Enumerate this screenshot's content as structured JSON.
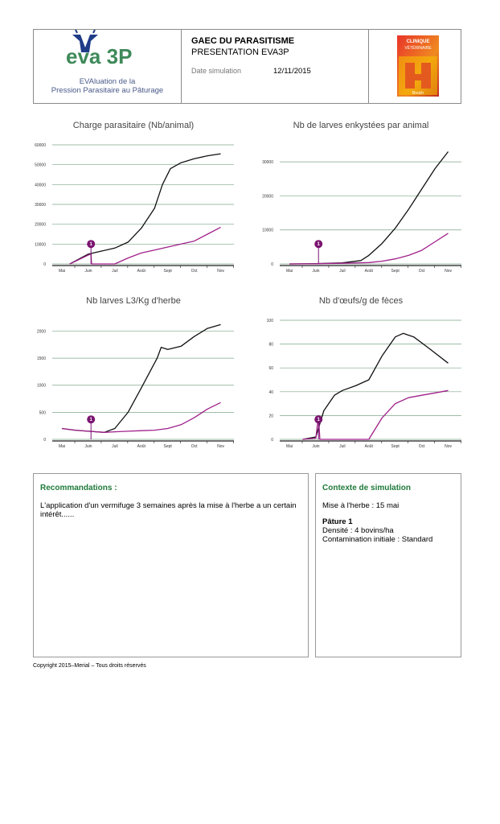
{
  "header": {
    "logo_text": "eva 3P",
    "logo_line1": "EVAluation de la",
    "logo_line2": "Pression Parasitaire au Pâturage",
    "farm": "GAEC DU PARASITISME",
    "presentation": "PRESENTATION EVA3P",
    "date_label": "Date simulation",
    "date_value": "12/11/2015",
    "clinic_logo_text": "CLINIQUE VÉTÉRINAIRE Breizh"
  },
  "colors": {
    "series_total": "#111111",
    "series_treated": "#a0208a",
    "grid": "#7fa58a",
    "marker": "#7a1470",
    "box_title": "#1f7a3a"
  },
  "chart_data": [
    {
      "type": "line",
      "title": "Charge parasitaire (Nb/animal)",
      "categories": [
        "Mai",
        "Juin",
        "Juil",
        "Août",
        "Sept",
        "Oct",
        "Nov"
      ],
      "yticks": [
        "0",
        "10000",
        "20000",
        "30000",
        "40000",
        "50000",
        "60000"
      ],
      "ylim": [
        0,
        60000
      ],
      "marker": {
        "label": "1",
        "month": 1.1
      },
      "series": [
        {
          "points": [
            [
              0.3,
              0
            ],
            [
              1,
              5000
            ],
            [
              1.5,
              6500
            ],
            [
              2,
              8000
            ],
            [
              2.5,
              11000
            ],
            [
              3,
              18000
            ],
            [
              3.5,
              28000
            ],
            [
              3.8,
              40000
            ],
            [
              4.1,
              48000
            ],
            [
              4.5,
              51000
            ],
            [
              5,
              53000
            ],
            [
              5.5,
              54500
            ],
            [
              6,
              55500
            ]
          ]
        },
        {
          "points": [
            [
              0.3,
              0
            ],
            [
              1,
              4500
            ],
            [
              1.1,
              5000
            ],
            [
              1.12,
              0
            ],
            [
              2,
              0
            ],
            [
              2.5,
              3000
            ],
            [
              3,
              5500
            ],
            [
              3.5,
              7000
            ],
            [
              4,
              8500
            ],
            [
              4.5,
              10000
            ],
            [
              5,
              11500
            ],
            [
              5.5,
              15000
            ],
            [
              6,
              18500
            ]
          ]
        }
      ]
    },
    {
      "type": "line",
      "title": "Nb de larves enkystées par animal",
      "categories": [
        "Mai",
        "Juin",
        "Juil",
        "Août",
        "Sept",
        "Oct",
        "Nov"
      ],
      "yticks": [
        "0",
        "10000",
        "20000",
        "30000"
      ],
      "ylim": [
        0,
        35000
      ],
      "marker": {
        "label": "1",
        "month": 1.1
      },
      "series": [
        {
          "points": [
            [
              0,
              0
            ],
            [
              1,
              100
            ],
            [
              2,
              300
            ],
            [
              2.7,
              1000
            ],
            [
              3,
              2500
            ],
            [
              3.5,
              6000
            ],
            [
              4,
              10500
            ],
            [
              4.5,
              16000
            ],
            [
              5,
              22000
            ],
            [
              5.5,
              28000
            ],
            [
              6,
              33000
            ]
          ]
        },
        {
          "points": [
            [
              0,
              0
            ],
            [
              1,
              50
            ],
            [
              1.1,
              80
            ],
            [
              2,
              200
            ],
            [
              3,
              400
            ],
            [
              3.5,
              800
            ],
            [
              4,
              1500
            ],
            [
              4.5,
              2500
            ],
            [
              5,
              4000
            ],
            [
              5.5,
              6500
            ],
            [
              6,
              9000
            ]
          ]
        }
      ]
    },
    {
      "type": "line",
      "title": "Nb larves L3/Kg d'herbe",
      "categories": [
        "Mai",
        "Juin",
        "Juil",
        "Août",
        "Sept",
        "Oct",
        "Nov"
      ],
      "yticks": [
        "0",
        "500",
        "1000",
        "1500",
        "2000"
      ],
      "ylim": [
        0,
        2200
      ],
      "marker": {
        "label": "1",
        "month": 1.1
      },
      "series": [
        {
          "points": [
            [
              0,
              200
            ],
            [
              0.5,
              170
            ],
            [
              1,
              150
            ],
            [
              1.6,
              130
            ],
            [
              2,
              200
            ],
            [
              2.5,
              500
            ],
            [
              3,
              950
            ],
            [
              3.6,
              1500
            ],
            [
              3.75,
              1700
            ],
            [
              4,
              1660
            ],
            [
              4.5,
              1720
            ],
            [
              5,
              1900
            ],
            [
              5.5,
              2050
            ],
            [
              6,
              2120
            ]
          ]
        },
        {
          "points": [
            [
              0,
              200
            ],
            [
              0.5,
              170
            ],
            [
              1,
              150
            ],
            [
              1.6,
              130
            ],
            [
              2,
              140
            ],
            [
              2.5,
              150
            ],
            [
              3,
              160
            ],
            [
              3.5,
              170
            ],
            [
              4,
              200
            ],
            [
              4.5,
              270
            ],
            [
              5,
              400
            ],
            [
              5.5,
              560
            ],
            [
              6,
              680
            ]
          ]
        }
      ]
    },
    {
      "type": "line",
      "title": "Nb d'œufs/g de fèces",
      "categories": [
        "Mai",
        "Juin",
        "Juil",
        "Août",
        "Sept",
        "Oct",
        "Nov"
      ],
      "yticks": [
        "0",
        "20",
        "40",
        "60",
        "80",
        "100"
      ],
      "ylim": [
        0,
        100
      ],
      "marker": {
        "label": "1",
        "month": 1.1
      },
      "series": [
        {
          "points": [
            [
              0.5,
              0
            ],
            [
              1,
              2
            ],
            [
              1.3,
              24
            ],
            [
              1.7,
              37
            ],
            [
              2,
              41
            ],
            [
              2.5,
              45
            ],
            [
              3,
              50
            ],
            [
              3.5,
              70
            ],
            [
              4,
              86
            ],
            [
              4.3,
              89
            ],
            [
              4.7,
              86
            ],
            [
              5.3,
              76
            ],
            [
              6,
              64
            ]
          ]
        },
        {
          "points": [
            [
              0.5,
              0
            ],
            [
              1,
              1
            ],
            [
              1.1,
              20
            ],
            [
              1.15,
              0
            ],
            [
              2,
              0
            ],
            [
              3,
              0
            ],
            [
              3.5,
              18
            ],
            [
              4,
              30
            ],
            [
              4.5,
              35
            ],
            [
              5,
              37
            ],
            [
              5.5,
              39
            ],
            [
              6,
              41
            ]
          ]
        }
      ]
    }
  ],
  "recommandations": {
    "title": "Recommandations :",
    "text": "L'application d'un vermifuge 3 semaines après la mise à l'herbe a un certain intérêt......"
  },
  "contexte": {
    "title": "Contexte de simulation",
    "mise_herbe": "Mise à l'herbe : 15 mai",
    "pature": "Pâture 1",
    "densite": "Densité : 4 bovins/ha",
    "contamination": "Contamination initiale : Standard"
  },
  "copyright": "Copyright 2015–Merial – Tous droits réservés"
}
